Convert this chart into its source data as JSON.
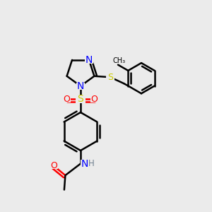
{
  "bg_color": "#ebebeb",
  "bond_color": "#000000",
  "bond_width": 1.8,
  "atom_colors": {
    "N": "#0000ff",
    "S": "#cccc00",
    "O": "#ff0000",
    "H": "#708090",
    "C": "#000000"
  },
  "figsize": [
    3.0,
    3.0
  ],
  "dpi": 100,
  "xlim": [
    0,
    10
  ],
  "ylim": [
    0,
    10
  ]
}
